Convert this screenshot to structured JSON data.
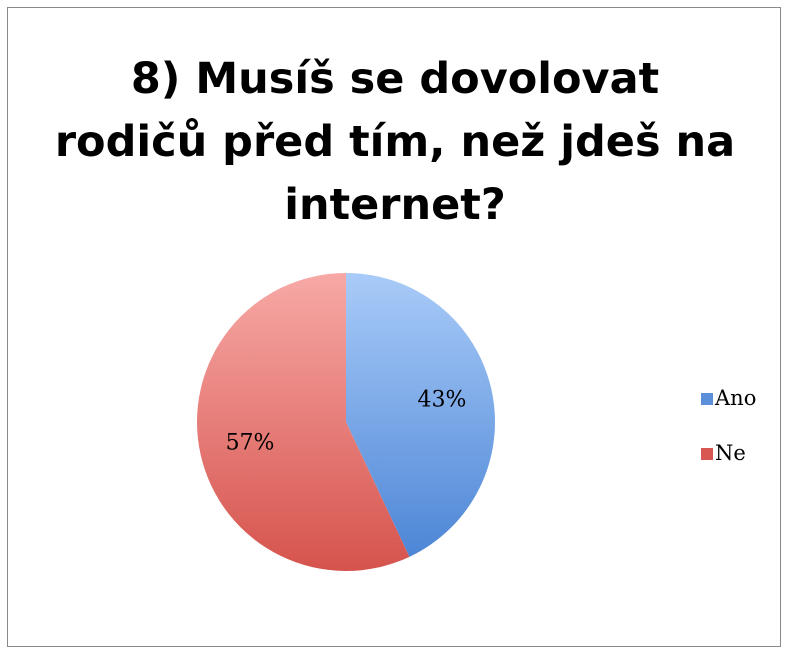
{
  "chart_data": {
    "type": "pie",
    "title_lines": [
      "8) Musíš se dovolovat",
      "rodičů před tím, než jdeš na",
      "internet?"
    ],
    "categories": [
      "Ano",
      "Ne"
    ],
    "values": [
      43,
      57
    ],
    "value_labels": [
      "43%",
      "57%"
    ],
    "colors": [
      "#5b8fd9",
      "#d85752"
    ],
    "legend_position": "right"
  }
}
